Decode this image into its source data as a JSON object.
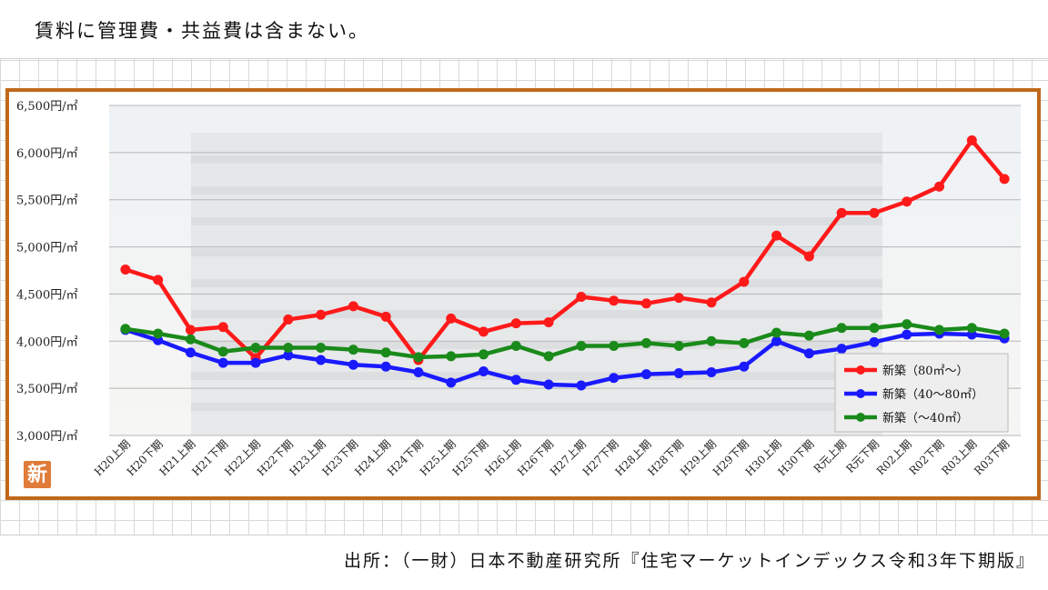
{
  "header": {
    "note": "賃料に管理費・共益費は含まない。"
  },
  "footer": {
    "source": "出所：（一財）日本不動産研究所『住宅マーケットインデックス令和3年下期版』"
  },
  "badge": {
    "label": "新"
  },
  "colors": {
    "frame": "#c0681a",
    "red": "#ff1a1a",
    "blue": "#1a1aff",
    "green": "#1a8a1a"
  },
  "chart_data": {
    "type": "line",
    "title": "",
    "xlabel": "",
    "ylabel": "",
    "ylim": [
      3000,
      6500
    ],
    "yticks": [
      3000,
      3500,
      4000,
      4500,
      5000,
      5500,
      6000,
      6500
    ],
    "ytick_labels": [
      "3,000円/㎡",
      "3,500円/㎡",
      "4,000円/㎡",
      "4,500円/㎡",
      "5,000円/㎡",
      "5,500円/㎡",
      "6,000円/㎡",
      "6,500円/㎡"
    ],
    "grid": true,
    "legend_position": "bottom-right",
    "categories": [
      "H20上期",
      "H20下期",
      "H21上期",
      "H21下期",
      "H22上期",
      "H22下期",
      "H23上期",
      "H23下期",
      "H24上期",
      "H24下期",
      "H25上期",
      "H25下期",
      "H26上期",
      "H26下期",
      "H27上期",
      "H27下期",
      "H28上期",
      "H28下期",
      "H29上期",
      "H29下期",
      "H30上期",
      "H30下期",
      "R元上期",
      "R元下期",
      "R02上期",
      "R02下期",
      "R03上期",
      "R03下期"
    ],
    "series": [
      {
        "name": "新築（80㎡～）",
        "color": "#ff1a1a",
        "values": [
          4760,
          4650,
          4120,
          4150,
          3820,
          4230,
          4280,
          4370,
          4260,
          3800,
          4240,
          4100,
          4190,
          4200,
          4470,
          4430,
          4400,
          4460,
          4410,
          4630,
          5120,
          4900,
          5360,
          5360,
          5480,
          5640,
          6130,
          5720
        ]
      },
      {
        "name": "新築（40～80㎡）",
        "color": "#1a1aff",
        "values": [
          4120,
          4010,
          3880,
          3770,
          3770,
          3850,
          3800,
          3750,
          3730,
          3670,
          3560,
          3680,
          3590,
          3540,
          3530,
          3610,
          3650,
          3660,
          3670,
          3730,
          4000,
          3870,
          3920,
          3990,
          4070,
          4080,
          4070,
          4030
        ]
      },
      {
        "name": "新築（～40㎡）",
        "color": "#1a8a1a",
        "values": [
          4130,
          4080,
          4020,
          3890,
          3930,
          3930,
          3930,
          3910,
          3880,
          3830,
          3840,
          3860,
          3950,
          3840,
          3950,
          3950,
          3980,
          3950,
          4000,
          3980,
          4090,
          4060,
          4140,
          4140,
          4180,
          4120,
          4140,
          4080
        ]
      }
    ]
  }
}
